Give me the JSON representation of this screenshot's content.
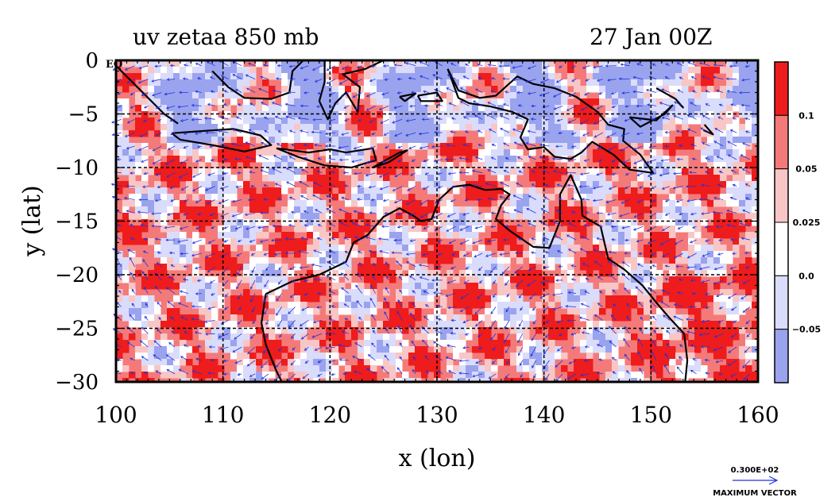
{
  "chart_data": {
    "type": "heatmap",
    "title_left": "uv zetaa 850 mb",
    "title_right": "27 Jan 00Z",
    "xlabel": "x (lon)",
    "ylabel": "y (lat)",
    "xlim": [
      100,
      160
    ],
    "ylim": [
      -30,
      0
    ],
    "x_ticks": [
      100,
      110,
      120,
      130,
      140,
      150,
      160
    ],
    "x_tick_labels": [
      "100",
      "110",
      "120",
      "130",
      "140",
      "150",
      "160"
    ],
    "y_ticks": [
      0,
      -5,
      -10,
      -15,
      -20,
      -25,
      -30
    ],
    "y_tick_labels": [
      "0",
      "−5",
      "−10",
      "−15",
      "−20",
      "−25",
      "−30"
    ],
    "eq_label": "EQ",
    "grid": true,
    "colorbar": {
      "levels": [
        -0.05,
        0.0,
        0.025,
        0.05,
        0.1
      ],
      "labels": [
        "−0.05",
        "0.0",
        "0.025",
        "0.05",
        "0.1"
      ],
      "colors": [
        "#9aa3ee",
        "#dadcfb",
        "#ffffff",
        "#f9c6c6",
        "#f47a7a",
        "#ee1c1c"
      ]
    },
    "vector_key": {
      "value": "0.300E+02",
      "label": "MAXIMUM VECTOR",
      "color": "#2233dd"
    }
  }
}
